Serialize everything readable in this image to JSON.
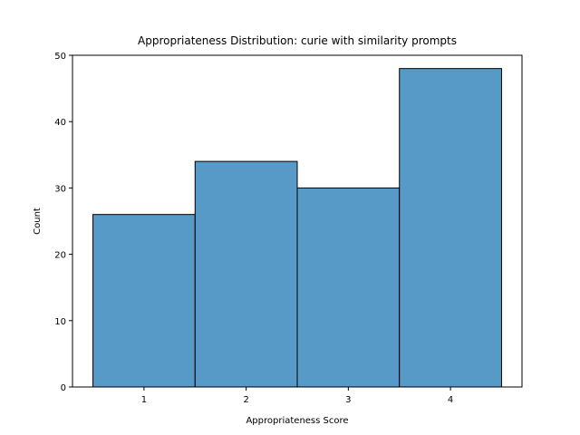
{
  "chart_data": {
    "type": "bar",
    "title": "Appropriateness Distribution: curie with similarity prompts",
    "xlabel": "Appropriateness Score",
    "ylabel": "Count",
    "categories": [
      "1",
      "2",
      "3",
      "4"
    ],
    "values": [
      26,
      34,
      30,
      48
    ],
    "xlim": [
      0.3,
      4.7
    ],
    "ylim": [
      0,
      50
    ],
    "yticks": [
      0,
      10,
      20,
      30,
      40,
      50
    ],
    "grid": false,
    "bar_color": "#5799c7",
    "edge_color": "#000000"
  }
}
